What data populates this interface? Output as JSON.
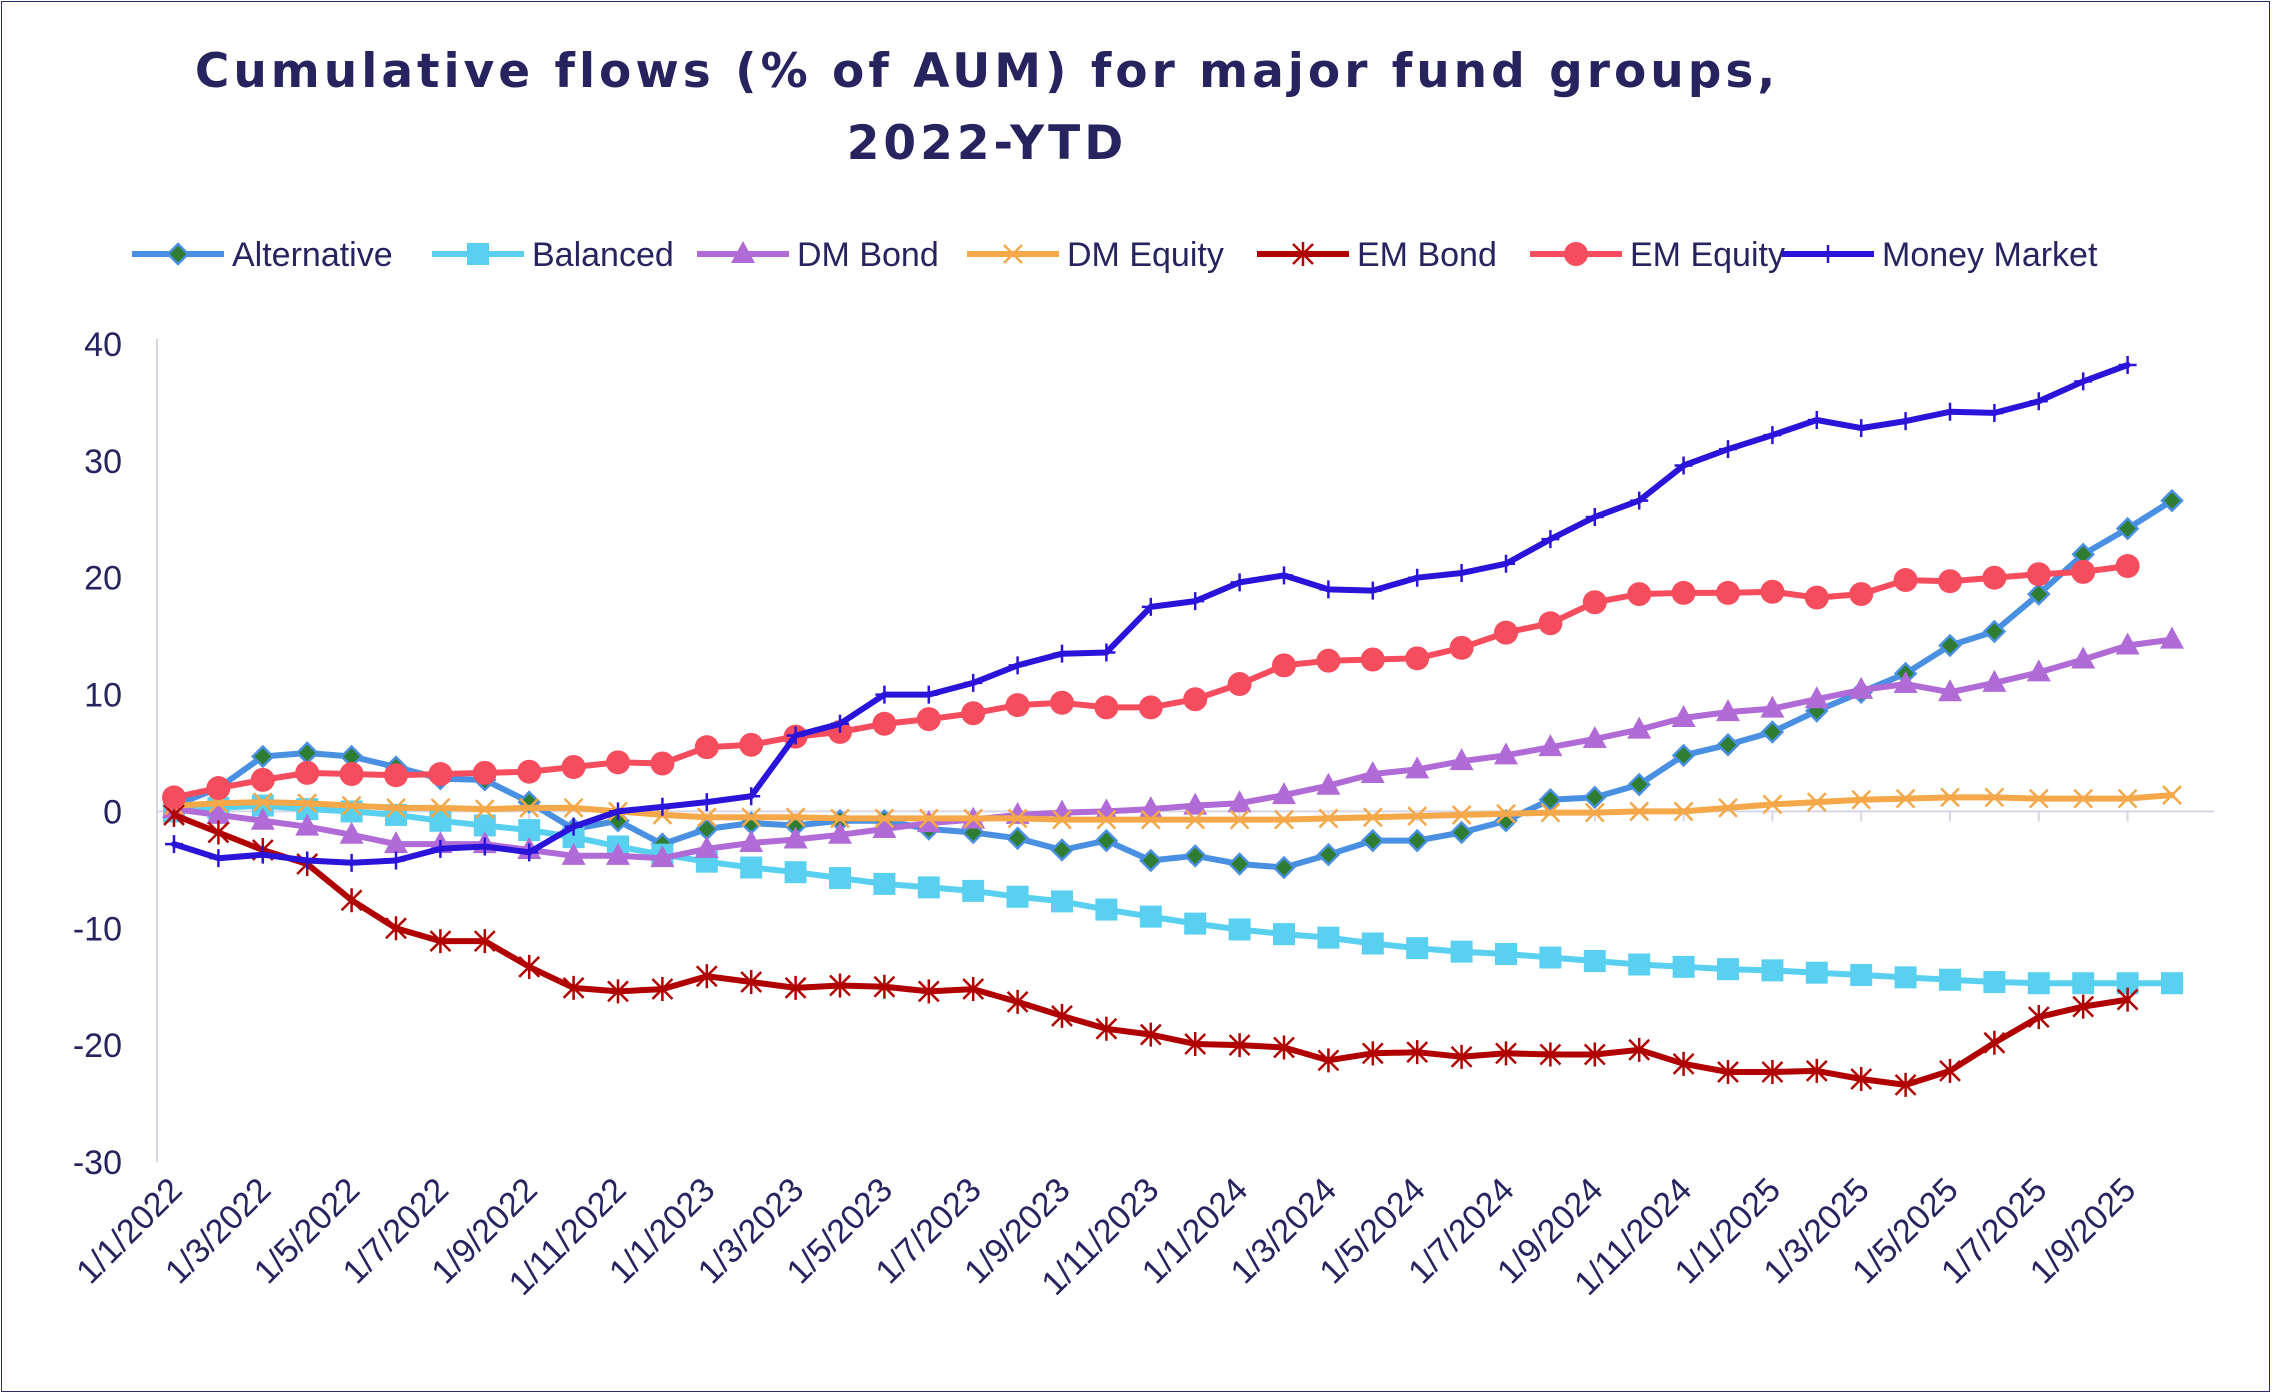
{
  "title_lines": [
    "Cumulative flows (% of AUM) for major fund groups,",
    "2022-YTD"
  ],
  "chart_data": {
    "type": "line",
    "title": "Cumulative flows (% of AUM) for major fund groups, 2022-YTD",
    "xlabel": "",
    "ylabel": "",
    "ylim": [
      -30,
      40
    ],
    "yticks": [
      -30,
      -20,
      -10,
      0,
      10,
      20,
      30,
      40
    ],
    "grid": false,
    "legend_position": "top",
    "x_tick_labels": [
      "1/1/2022",
      "1/3/2022",
      "1/5/2022",
      "1/7/2022",
      "1/9/2022",
      "1/11/2022",
      "1/1/2023",
      "1/3/2023",
      "1/5/2023",
      "1/7/2023",
      "1/9/2023",
      "1/11/2023",
      "1/1/2024",
      "1/3/2024",
      "1/5/2024",
      "1/7/2024",
      "1/9/2024",
      "1/11/2024",
      "1/1/2025",
      "1/3/2025",
      "1/5/2025",
      "1/7/2025",
      "1/9/2025"
    ],
    "x_tick_every": 2,
    "series": [
      {
        "name": "Alternative",
        "color": "#4a90e2",
        "marker": "diamond",
        "marker_fill": "#2e7d32",
        "values": [
          0.5,
          2,
          4.7,
          5,
          4.7,
          3.8,
          2.8,
          2.7,
          0.8,
          -1.5,
          -0.8,
          -2.8,
          -1.5,
          -1,
          -1.2,
          -0.8,
          -0.8,
          -1.5,
          -1.8,
          -2.3,
          -3.3,
          -2.5,
          -4.2,
          -3.8,
          -4.5,
          -4.8,
          -3.7,
          -2.5,
          -2.5,
          -1.8,
          -0.8,
          1,
          1.2,
          2.3,
          4.8,
          5.7,
          6.8,
          8.6,
          10.2,
          11.8,
          14.2,
          15.4,
          18.6,
          22,
          24.2,
          26.6
        ]
      },
      {
        "name": "Balanced",
        "color": "#5ad0f0",
        "marker": "square",
        "values": [
          0,
          0.3,
          0.5,
          0.2,
          0,
          -0.3,
          -0.8,
          -1.2,
          -1.6,
          -2.2,
          -3,
          -3.7,
          -4.3,
          -4.8,
          -5.2,
          -5.7,
          -6.2,
          -6.5,
          -6.8,
          -7.3,
          -7.7,
          -8.4,
          -9,
          -9.6,
          -10.1,
          -10.5,
          -10.8,
          -11.3,
          -11.7,
          -12,
          -12.2,
          -12.5,
          -12.8,
          -13.1,
          -13.3,
          -13.5,
          -13.6,
          -13.8,
          -14,
          -14.2,
          -14.4,
          -14.6,
          -14.7,
          -14.7,
          -14.7,
          -14.7
        ]
      },
      {
        "name": "DM Bond",
        "color": "#b06bd6",
        "marker": "triangle",
        "values": [
          0.2,
          -0.3,
          -0.8,
          -1.3,
          -2,
          -2.8,
          -2.8,
          -2.8,
          -3.3,
          -3.8,
          -3.8,
          -4,
          -3.2,
          -2.7,
          -2.4,
          -2,
          -1.5,
          -1,
          -0.7,
          -0.3,
          -0.1,
          0,
          0.2,
          0.5,
          0.7,
          1.4,
          2.2,
          3.2,
          3.6,
          4.3,
          4.8,
          5.5,
          6.2,
          7,
          8,
          8.5,
          8.8,
          9.6,
          10.4,
          10.9,
          10.2,
          11,
          11.9,
          13,
          14.2,
          14.7
        ]
      },
      {
        "name": "DM Equity",
        "color": "#f5a84a",
        "marker": "x",
        "values": [
          0.5,
          0.7,
          0.8,
          0.7,
          0.5,
          0.3,
          0.3,
          0.2,
          0.3,
          0.3,
          0,
          -0.3,
          -0.5,
          -0.5,
          -0.5,
          -0.6,
          -0.6,
          -0.6,
          -0.6,
          -0.6,
          -0.7,
          -0.7,
          -0.7,
          -0.7,
          -0.7,
          -0.7,
          -0.6,
          -0.5,
          -0.4,
          -0.3,
          -0.2,
          -0.1,
          -0.1,
          0,
          0,
          0.3,
          0.6,
          0.8,
          1,
          1.1,
          1.2,
          1.2,
          1.1,
          1.1,
          1.1,
          1.4
        ]
      },
      {
        "name": "EM Bond",
        "color": "#b00000",
        "marker": "star",
        "values": [
          -0.3,
          -1.8,
          -3.3,
          -4.5,
          -7.6,
          -10,
          -11.1,
          -11.1,
          -13.3,
          -15.1,
          -15.4,
          -15.2,
          -14.1,
          -14.6,
          -15.1,
          -14.9,
          -15,
          -15.4,
          -15.2,
          -16.3,
          -17.5,
          -18.6,
          -19.1,
          -19.9,
          -20,
          -20.2,
          -21.3,
          -20.7,
          -20.6,
          -21,
          -20.7,
          -20.8,
          -20.8,
          -20.4,
          -21.6,
          -22.3,
          -22.3,
          -22.2,
          -22.9,
          -23.4,
          -22.2,
          -19.8,
          -17.6,
          -16.7,
          -16.1
        ]
      },
      {
        "name": "EM Equity",
        "color": "#f54d5e",
        "marker": "circle",
        "values": [
          1.2,
          2,
          2.7,
          3.3,
          3.2,
          3.1,
          3.2,
          3.3,
          3.4,
          3.8,
          4.2,
          4.1,
          5.5,
          5.7,
          6.4,
          6.8,
          7.5,
          7.9,
          8.4,
          9.1,
          9.3,
          8.9,
          8.9,
          9.6,
          10.9,
          12.5,
          12.9,
          13,
          13.1,
          14,
          15.3,
          16.1,
          17.9,
          18.6,
          18.7,
          18.7,
          18.8,
          18.3,
          18.6,
          19.8,
          19.7,
          20,
          20.3,
          20.5,
          21
        ]
      },
      {
        "name": "Money Market",
        "color": "#2a14d9",
        "marker": "plus",
        "values": [
          -2.8,
          -4,
          -3.7,
          -4.2,
          -4.4,
          -4.2,
          -3.2,
          -3,
          -3.5,
          -1.3,
          0,
          0.4,
          0.8,
          1.3,
          6.5,
          7.5,
          10,
          10,
          11,
          12.5,
          13.5,
          13.6,
          17.5,
          18,
          19.6,
          20.2,
          19,
          18.9,
          20,
          20.4,
          21.2,
          23.3,
          25.2,
          26.6,
          29.6,
          31,
          32.2,
          33.5,
          32.8,
          33.4,
          34.2,
          34.1,
          35.1,
          36.8,
          38.2
        ]
      }
    ]
  }
}
